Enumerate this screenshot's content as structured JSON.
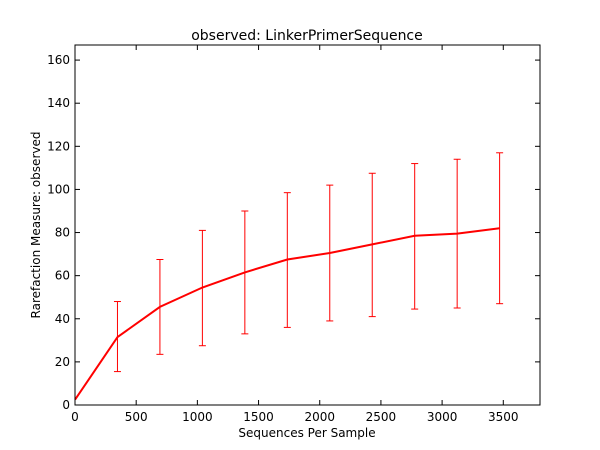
{
  "chart_data": {
    "type": "line",
    "title": "observed: LinkerPrimerSequence",
    "xlabel": "Sequences Per Sample",
    "ylabel": "Rarefaction Measure: observed",
    "xlim": [
      0,
      3800
    ],
    "ylim": [
      0,
      167
    ],
    "x_ticks": [
      0,
      500,
      1000,
      1500,
      2000,
      2500,
      3000,
      3500
    ],
    "y_ticks": [
      0,
      20,
      40,
      60,
      80,
      100,
      120,
      140,
      160
    ],
    "grid": false,
    "color": "#ff0000",
    "series": [
      {
        "x": [
          1,
          347,
          694,
          1041,
          1388,
          1735,
          2082,
          2429,
          2776,
          3123,
          3470
        ],
        "y": [
          2.5,
          31.5,
          45.5,
          54.5,
          61.5,
          67.5,
          70.5,
          74.5,
          78.5,
          79.5,
          82.0
        ],
        "y_low": [
          null,
          15.5,
          23.5,
          27.5,
          33.0,
          36.0,
          39.0,
          41.0,
          44.5,
          45.0,
          47.0
        ],
        "y_high": [
          null,
          48.0,
          67.5,
          81.0,
          90.0,
          98.5,
          102.0,
          107.5,
          112.0,
          114.0,
          117.0
        ]
      }
    ]
  }
}
